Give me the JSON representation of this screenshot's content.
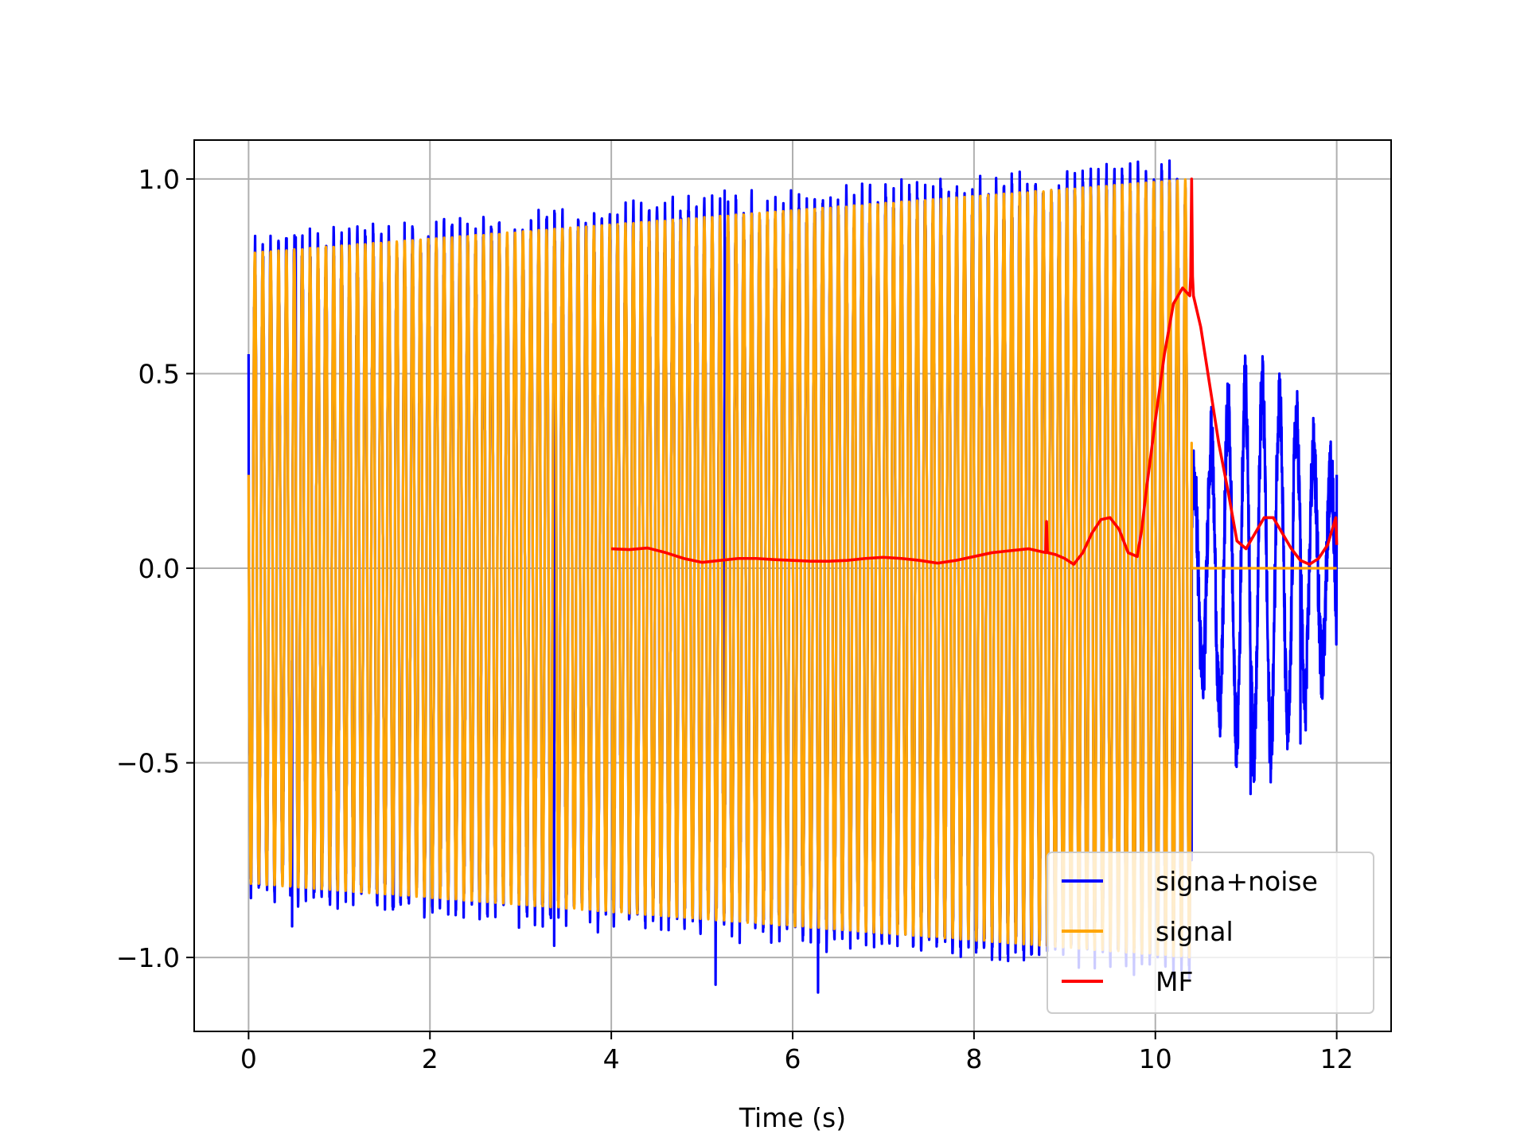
{
  "chart_data": {
    "type": "line",
    "title": "",
    "xlabel": "Time (s)",
    "ylabel": "",
    "xlim": [
      -0.6,
      12.6
    ],
    "ylim": [
      -1.19,
      1.1
    ],
    "xticks": [
      0,
      2,
      4,
      6,
      8,
      10,
      12
    ],
    "xtick_labels": [
      "0",
      "2",
      "4",
      "6",
      "8",
      "10",
      "12"
    ],
    "yticks": [
      -1.0,
      -0.5,
      0.0,
      0.5,
      1.0
    ],
    "ytick_labels": [
      "−1.0",
      "−0.5",
      "0.0",
      "0.5",
      "1.0"
    ],
    "grid": true,
    "legend_position": "lower-right",
    "series": [
      {
        "name": "signa+noise",
        "color": "#0000ff",
        "description_points": {
          "x": [
            0.0,
            0.48,
            0.52,
            1.6,
            3.37,
            5.15,
            5.2,
            5.25,
            6.28,
            7.63,
            10.4,
            10.6,
            11.0,
            11.05,
            11.6,
            12.0
          ],
          "y": [
            0.55,
            -0.92,
            0.85,
            -0.87,
            -0.97,
            -1.07,
            0.95,
            0.97,
            -1.09,
            1.0,
            -0.75,
            0.25,
            0.52,
            -0.58,
            -0.45,
            0.24
          ]
        }
      },
      {
        "name": "signal",
        "color": "#ffa500",
        "chirp": {
          "t_start": 0.0,
          "t_end": 10.4,
          "amp_start": 0.81,
          "amp_end": 1.0,
          "cycles_per_second": 11.5,
          "after_end_value": 0.0,
          "x_end": 12.0
        }
      },
      {
        "name": "MF",
        "color": "#ff0000",
        "x": [
          4.0,
          4.2,
          4.4,
          4.6,
          4.8,
          5.0,
          5.2,
          5.4,
          5.6,
          5.8,
          6.0,
          6.2,
          6.4,
          6.6,
          6.8,
          7.0,
          7.2,
          7.4,
          7.6,
          7.8,
          8.0,
          8.2,
          8.4,
          8.6,
          8.79,
          8.8,
          8.81,
          8.9,
          9.0,
          9.1,
          9.2,
          9.3,
          9.4,
          9.5,
          9.6,
          9.7,
          9.8,
          9.85,
          9.9,
          10.0,
          10.1,
          10.2,
          10.3,
          10.38,
          10.39,
          10.4,
          10.41,
          10.42,
          10.5,
          10.6,
          10.7,
          10.8,
          10.9,
          11.0,
          11.1,
          11.2,
          11.3,
          11.4,
          11.5,
          11.6,
          11.7,
          11.8,
          11.9,
          11.99,
          12.0
        ],
        "y": [
          0.05,
          0.048,
          0.052,
          0.04,
          0.025,
          0.015,
          0.02,
          0.025,
          0.025,
          0.022,
          0.02,
          0.018,
          0.018,
          0.02,
          0.025,
          0.028,
          0.025,
          0.02,
          0.013,
          0.02,
          0.03,
          0.04,
          0.045,
          0.05,
          0.04,
          0.12,
          0.04,
          0.035,
          0.025,
          0.01,
          0.04,
          0.09,
          0.125,
          0.13,
          0.1,
          0.04,
          0.03,
          0.1,
          0.2,
          0.38,
          0.55,
          0.68,
          0.72,
          0.7,
          0.75,
          1.0,
          0.75,
          0.7,
          0.62,
          0.47,
          0.32,
          0.2,
          0.07,
          0.05,
          0.09,
          0.13,
          0.13,
          0.09,
          0.05,
          0.02,
          0.01,
          0.025,
          0.06,
          0.13,
          0.06
        ]
      }
    ]
  }
}
